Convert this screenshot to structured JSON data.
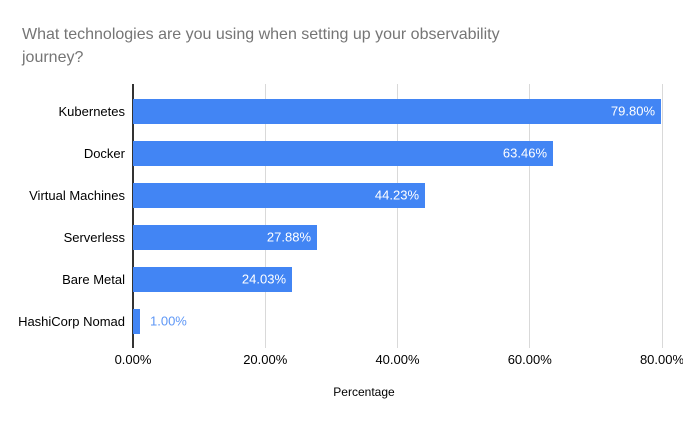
{
  "title_lines": [
    "What technologies are you using when setting up your observability",
    "journey?"
  ],
  "chart_data": {
    "type": "bar",
    "orientation": "horizontal",
    "title": "What technologies are you using when setting up your observability journey?",
    "categories": [
      "Kubernetes",
      "Docker",
      "Virtual Machines",
      "Serverless",
      "Bare Metal",
      "HashiCorp Nomad"
    ],
    "values": [
      79.8,
      63.46,
      44.23,
      27.88,
      24.03,
      1.0
    ],
    "value_labels": [
      "79.80%",
      "63.46%",
      "44.23%",
      "27.88%",
      "24.03%",
      "1.00%"
    ],
    "xlabel": "Percentage",
    "ylabel": "",
    "x_ticks": [
      "0.00%",
      "20.00%",
      "40.00%",
      "60.00%",
      "80.00%"
    ],
    "x_tick_values": [
      0,
      20,
      40,
      60,
      80
    ],
    "xlim": [
      0,
      81.6
    ],
    "grid": "vertical",
    "legend": "none",
    "colors": {
      "bar": "#4285f4",
      "inside_label": "#ffffff",
      "outside_label": "#5e97f6",
      "gridline": "#d9d9d9",
      "axis_line": "#333333",
      "title": "#757575",
      "tick_label": "#000000"
    }
  }
}
